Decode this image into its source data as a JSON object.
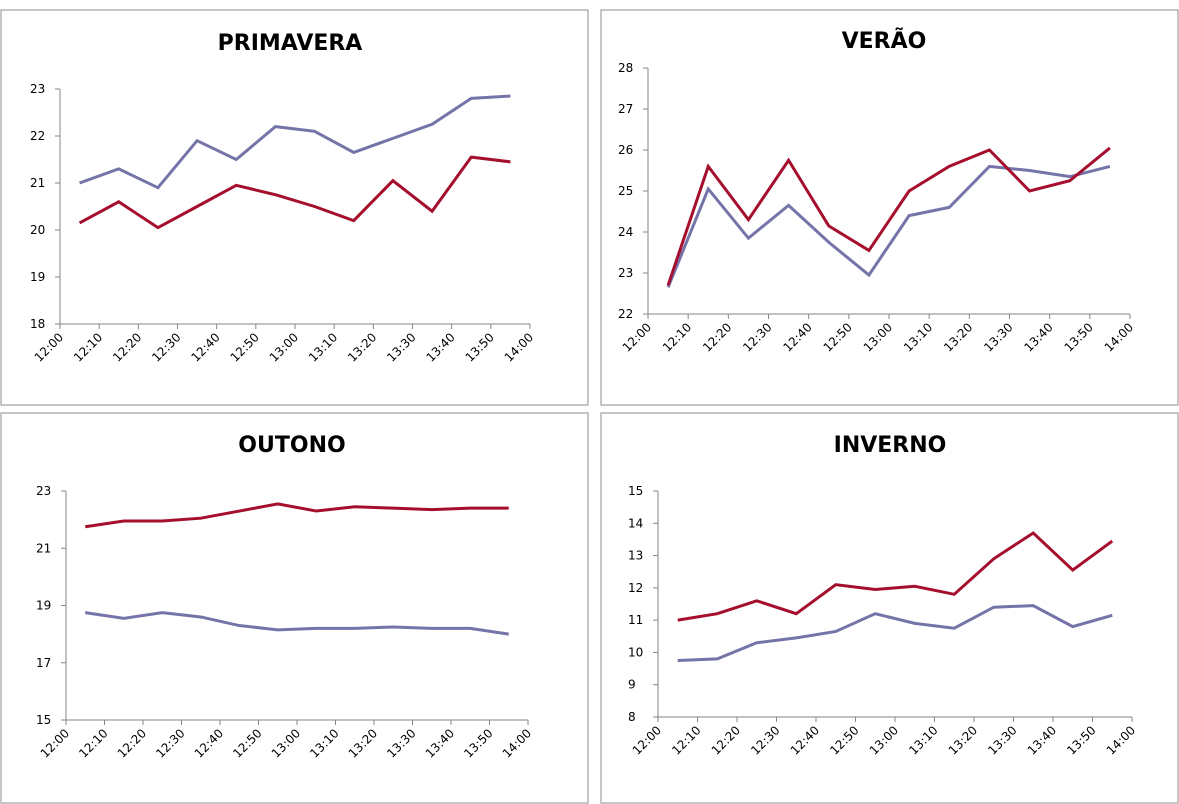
{
  "chart_data": [
    {
      "type": "line",
      "title": "PRIMAVERA",
      "x_labels": [
        "12:00",
        "12:10",
        "12:20",
        "12:30",
        "12:40",
        "12:50",
        "13:00",
        "13:10",
        "13:20",
        "13:30",
        "13:40",
        "13:50",
        "14:00"
      ],
      "ylim": [
        18,
        23
      ],
      "yticks": [
        18,
        19,
        20,
        21,
        22,
        23
      ],
      "series": [
        {
          "color": "#7474a8",
          "values": [
            21.0,
            21.3,
            20.9,
            21.9,
            21.5,
            22.2,
            22.1,
            21.65,
            21.95,
            22.25,
            22.8,
            22.85
          ]
        },
        {
          "color": "#a50f2d",
          "values": [
            20.15,
            20.6,
            20.05,
            20.5,
            20.95,
            20.75,
            20.5,
            20.2,
            21.05,
            20.4,
            21.55,
            21.45
          ]
        }
      ]
    },
    {
      "type": "line",
      "title": "VERÃO",
      "x_labels": [
        "12:00",
        "12:10",
        "12:20",
        "12:30",
        "12:40",
        "12:50",
        "13:00",
        "13:10",
        "13:20",
        "13:30",
        "13:40",
        "13:50",
        "14:00"
      ],
      "ylim": [
        22,
        28
      ],
      "yticks": [
        22,
        23,
        24,
        25,
        26,
        27,
        28
      ],
      "series": [
        {
          "color": "#7474a8",
          "values": [
            22.65,
            25.05,
            23.85,
            24.65,
            23.75,
            22.95,
            24.4,
            24.6,
            25.6,
            25.5,
            25.35,
            25.6
          ]
        },
        {
          "color": "#a50f2d",
          "values": [
            22.7,
            25.6,
            24.3,
            25.75,
            24.15,
            23.55,
            25.0,
            25.6,
            26.0,
            25.0,
            25.25,
            26.05
          ]
        }
      ]
    },
    {
      "type": "line",
      "title": "OUTONO",
      "x_labels": [
        "12:00",
        "12:10",
        "12:20",
        "12:30",
        "12:40",
        "12:50",
        "13:00",
        "13:10",
        "13:20",
        "13:30",
        "13:40",
        "13:50",
        "14:00"
      ],
      "ylim": [
        15,
        23
      ],
      "yticks": [
        15,
        17,
        19,
        21,
        23
      ],
      "series": [
        {
          "color": "#a50f2d",
          "values": [
            21.75,
            21.95,
            21.95,
            22.05,
            22.3,
            22.55,
            22.3,
            22.45,
            22.4,
            22.35,
            22.4,
            22.4
          ]
        },
        {
          "color": "#7474a8",
          "values": [
            18.75,
            18.55,
            18.75,
            18.6,
            18.3,
            18.15,
            18.2,
            18.2,
            18.25,
            18.2,
            18.2,
            18.0
          ]
        }
      ]
    },
    {
      "type": "line",
      "title": "INVERNO",
      "x_labels": [
        "12:00",
        "12:10",
        "12:20",
        "12:30",
        "12:40",
        "12:50",
        "13:00",
        "13:10",
        "13:20",
        "13:30",
        "13:40",
        "13:50",
        "14:00"
      ],
      "ylim": [
        8,
        15
      ],
      "yticks": [
        8,
        9,
        10,
        11,
        12,
        13,
        14,
        15
      ],
      "series": [
        {
          "color": "#a50f2d",
          "values": [
            11.0,
            11.2,
            11.6,
            11.2,
            12.1,
            11.95,
            12.05,
            11.8,
            12.9,
            13.7,
            12.55,
            13.45
          ]
        },
        {
          "color": "#7474a8",
          "values": [
            9.75,
            9.8,
            10.3,
            10.45,
            10.65,
            11.2,
            10.9,
            10.75,
            11.4,
            11.45,
            10.8,
            11.15
          ]
        }
      ]
    }
  ]
}
